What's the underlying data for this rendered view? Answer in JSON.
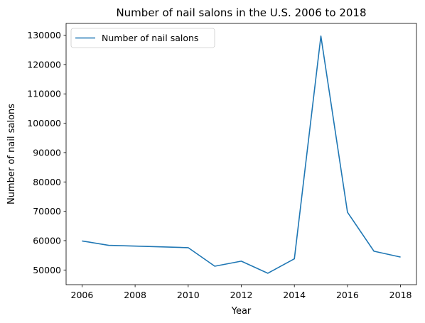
{
  "chart_data": {
    "type": "line",
    "title": "Number of nail salons in the U.S. 2006 to 2018",
    "xlabel": "Year",
    "ylabel": "Number of nail salons",
    "xlim": [
      2005.4,
      2018.6
    ],
    "ylim": [
      45000,
      134000
    ],
    "xticks": [
      2006,
      2008,
      2010,
      2012,
      2014,
      2016,
      2018
    ],
    "yticks": [
      50000,
      60000,
      70000,
      80000,
      90000,
      100000,
      110000,
      120000,
      130000
    ],
    "grid": false,
    "legend": {
      "position": "top-left",
      "entries": [
        "Number of nail salons"
      ]
    },
    "series": [
      {
        "name": "Number of nail salons",
        "color": "#1f77b4",
        "x": [
          2006,
          2007,
          2010,
          2011,
          2012,
          2013,
          2014,
          2015,
          2016,
          2017,
          2018
        ],
        "y": [
          59900,
          58400,
          57600,
          51300,
          53000,
          48900,
          53800,
          129700,
          69700,
          56400,
          54400
        ]
      }
    ]
  }
}
